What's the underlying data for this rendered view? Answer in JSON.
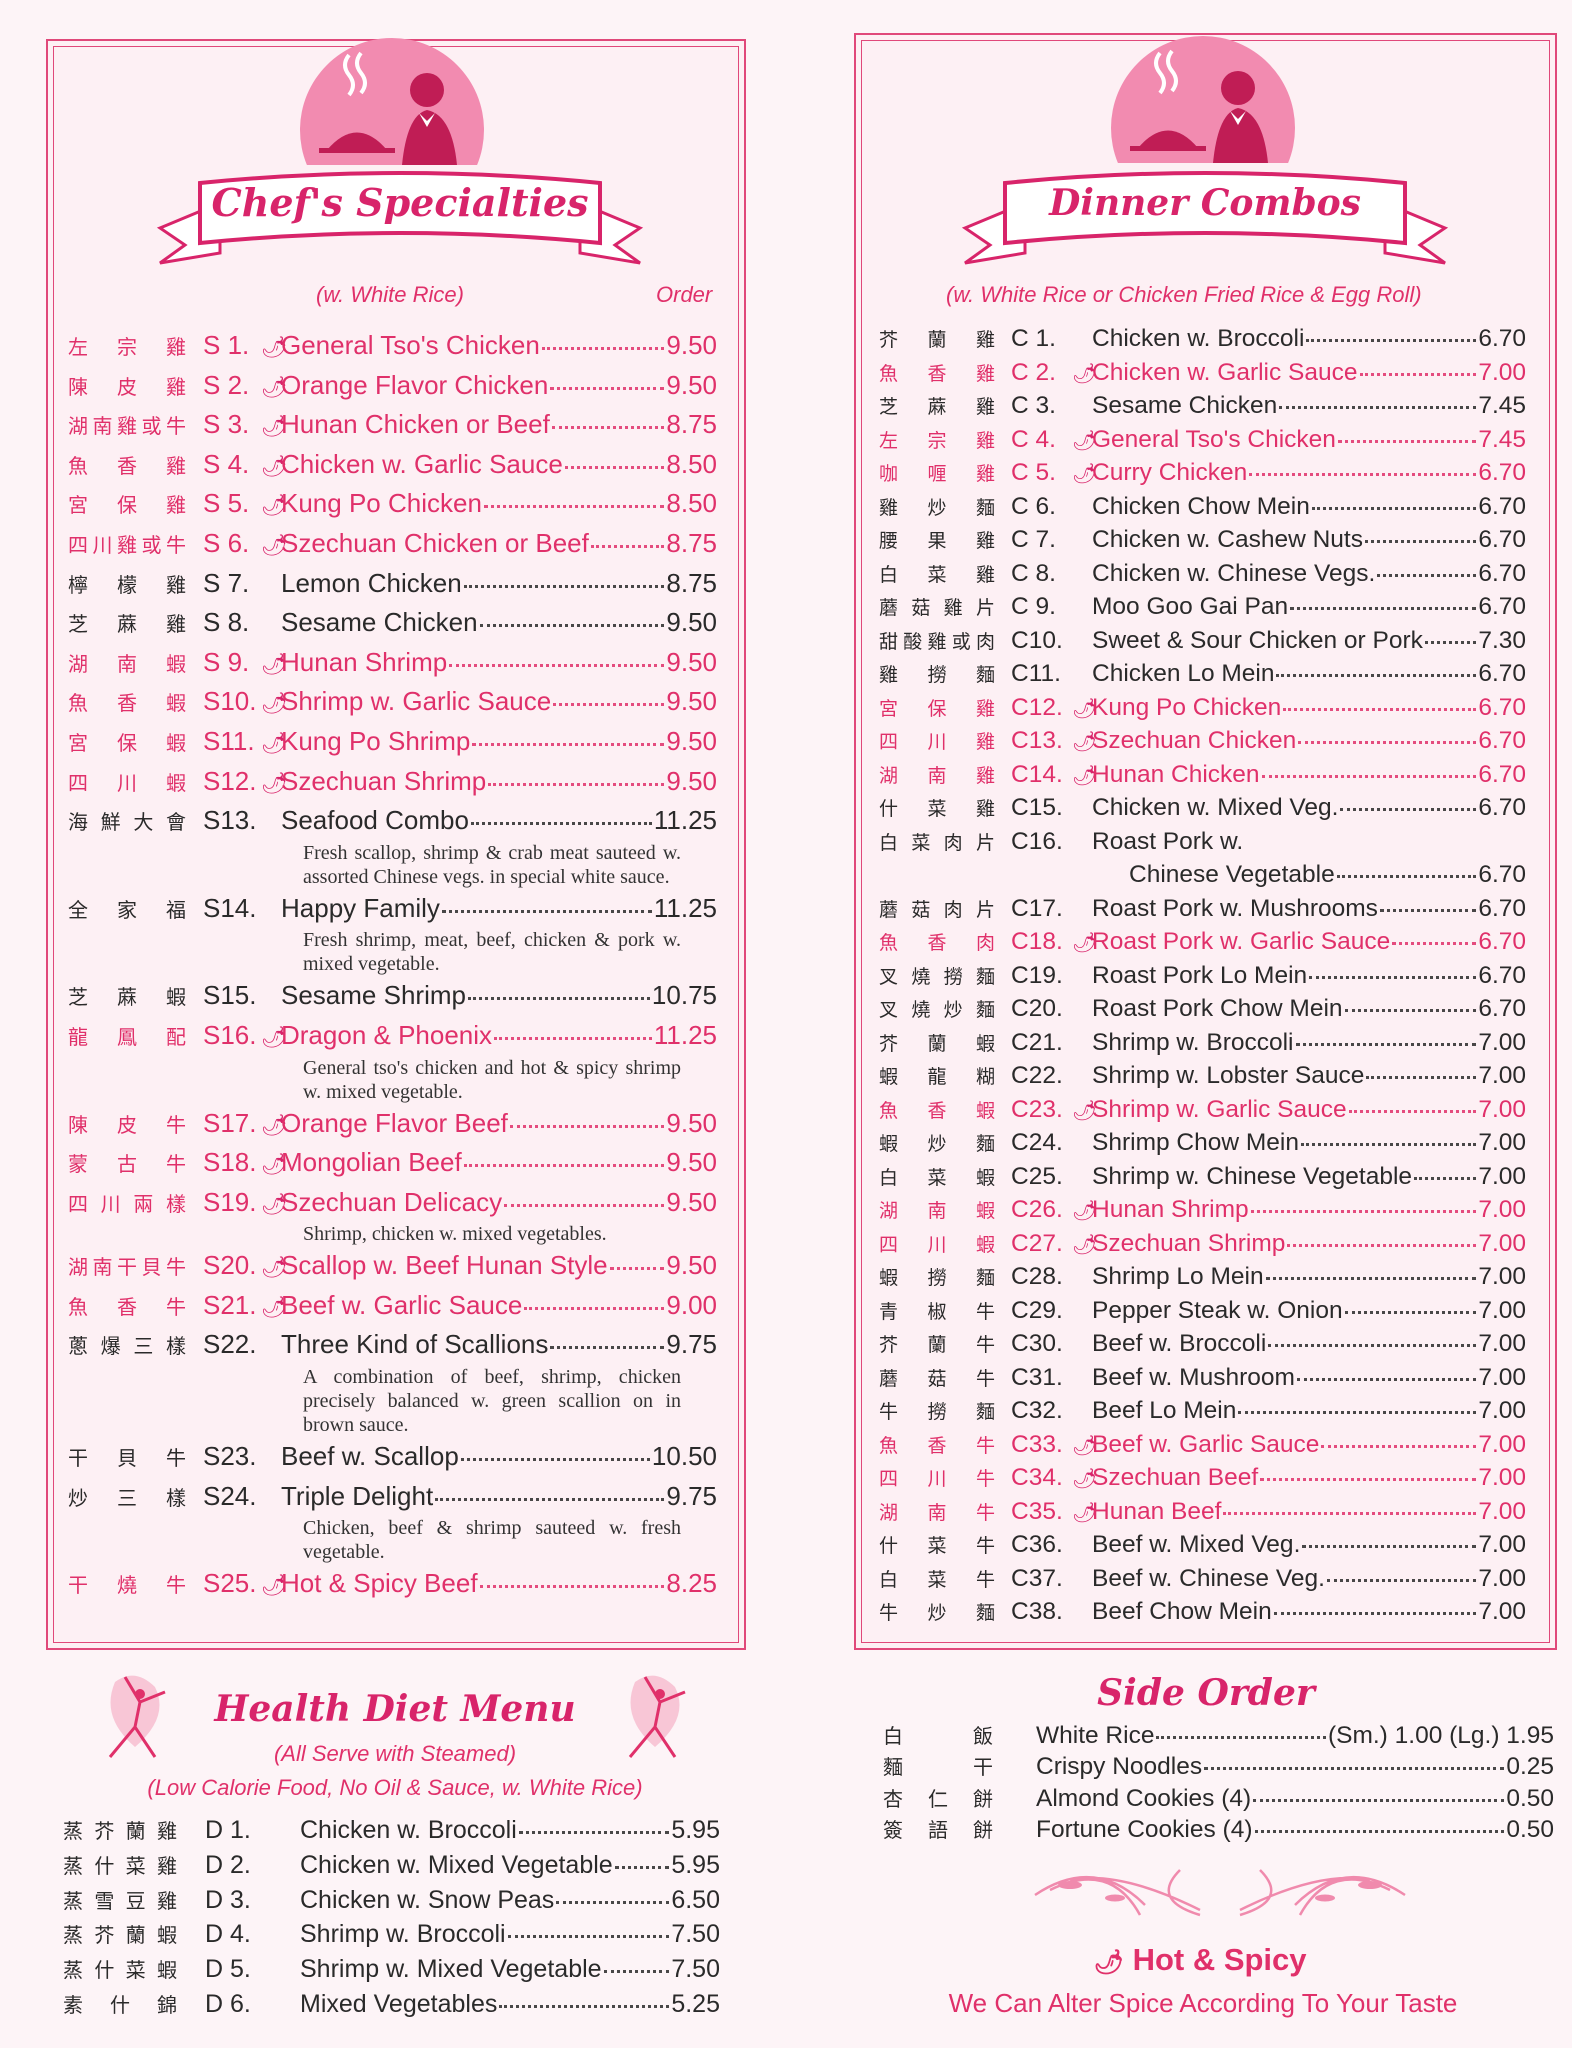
{
  "colors": {
    "accent": "#e0306a",
    "background": "#fdf4f7",
    "text": "#2a2a2a"
  },
  "icons": {
    "spicy": "chili-pepper-icon"
  },
  "specialties": {
    "title": "Chef's Specialties",
    "subtitle": "(w. White Rice)",
    "order_label": "Order",
    "items": [
      {
        "zh": "左宗雞",
        "code": "S 1.",
        "name": "General Tso's Chicken",
        "price": "9.50",
        "spicy": true
      },
      {
        "zh": "陳皮雞",
        "code": "S 2.",
        "name": "Orange Flavor Chicken",
        "price": "9.50",
        "spicy": true
      },
      {
        "zh": "湖南雞或牛",
        "code": "S 3.",
        "name": "Hunan Chicken or Beef",
        "price": "8.75",
        "spicy": true
      },
      {
        "zh": "魚香雞",
        "code": "S 4.",
        "name": "Chicken w. Garlic Sauce",
        "price": "8.50",
        "spicy": true
      },
      {
        "zh": "宮保雞",
        "code": "S 5.",
        "name": "Kung Po Chicken",
        "price": "8.50",
        "spicy": true
      },
      {
        "zh": "四川雞或牛",
        "code": "S 6.",
        "name": "Szechuan Chicken or Beef",
        "price": "8.75",
        "spicy": true
      },
      {
        "zh": "檸檬雞",
        "code": "S 7.",
        "name": "Lemon Chicken",
        "price": "8.75",
        "spicy": false
      },
      {
        "zh": "芝蔴雞",
        "code": "S 8.",
        "name": "Sesame Chicken",
        "price": "9.50",
        "spicy": false
      },
      {
        "zh": "湖南蝦",
        "code": "S 9.",
        "name": "Hunan Shrimp",
        "price": "9.50",
        "spicy": true
      },
      {
        "zh": "魚香蝦",
        "code": "S10.",
        "name": "Shrimp w. Garlic Sauce",
        "price": "9.50",
        "spicy": true
      },
      {
        "zh": "宮保蝦",
        "code": "S11.",
        "name": "Kung Po Shrimp",
        "price": "9.50",
        "spicy": true
      },
      {
        "zh": "四川蝦",
        "code": "S12.",
        "name": "Szechuan Shrimp",
        "price": "9.50",
        "spicy": true
      },
      {
        "zh": "海鮮大會",
        "code": "S13.",
        "name": "Seafood Combo",
        "price": "11.25",
        "spicy": false,
        "desc": "Fresh scallop, shrimp & crab meat sauteed w. assorted Chinese vegs. in special white sauce."
      },
      {
        "zh": "全家福",
        "code": "S14.",
        "name": "Happy Family",
        "price": "11.25",
        "spicy": false,
        "desc": "Fresh shrimp, meat, beef, chicken & pork w. mixed vegetable."
      },
      {
        "zh": "芝蔴蝦",
        "code": "S15.",
        "name": "Sesame Shrimp",
        "price": "10.75",
        "spicy": false
      },
      {
        "zh": "龍鳳配",
        "code": "S16.",
        "name": "Dragon & Phoenix",
        "price": "11.25",
        "spicy": true,
        "desc": "General tso's chicken and hot & spicy shrimp w. mixed vegetable."
      },
      {
        "zh": "陳皮牛",
        "code": "S17.",
        "name": "Orange Flavor Beef",
        "price": "9.50",
        "spicy": true
      },
      {
        "zh": "蒙古牛",
        "code": "S18.",
        "name": "Mongolian Beef",
        "price": "9.50",
        "spicy": true
      },
      {
        "zh": "四川兩樣",
        "code": "S19.",
        "name": "Szechuan Delicacy",
        "price": "9.50",
        "spicy": true,
        "desc": "Shrimp, chicken w. mixed vegetables."
      },
      {
        "zh": "湖南干貝牛",
        "code": "S20.",
        "name": "Scallop w. Beef Hunan Style",
        "price": "9.50",
        "spicy": true
      },
      {
        "zh": "魚香牛",
        "code": "S21.",
        "name": "Beef w. Garlic Sauce",
        "price": "9.00",
        "spicy": true
      },
      {
        "zh": "蔥爆三樣",
        "code": "S22.",
        "name": "Three Kind of Scallions",
        "price": "9.75",
        "spicy": false,
        "desc": "A combination of beef, shrimp, chicken precisely balanced w. green scallion on in brown sauce."
      },
      {
        "zh": "干貝牛",
        "code": "S23.",
        "name": "Beef w. Scallop",
        "price": "10.50",
        "spicy": false
      },
      {
        "zh": "炒三樣",
        "code": "S24.",
        "name": "Triple Delight",
        "price": "9.75",
        "spicy": false,
        "desc": "Chicken, beef & shrimp sauteed w. fresh vegetable."
      },
      {
        "zh": "干燒牛",
        "code": "S25.",
        "name": "Hot & Spicy Beef",
        "price": "8.25",
        "spicy": true
      }
    ]
  },
  "combos": {
    "title": "Dinner Combos",
    "subtitle": "(w. White Rice or Chicken Fried Rice & Egg Roll)",
    "items": [
      {
        "zh": "芥蘭雞",
        "code": "C 1.",
        "name": "Chicken w. Broccoli",
        "price": "6.70",
        "spicy": false
      },
      {
        "zh": "魚香雞",
        "code": "C 2.",
        "name": "Chicken w. Garlic Sauce",
        "price": "7.00",
        "spicy": true
      },
      {
        "zh": "芝蔴雞",
        "code": "C 3.",
        "name": "Sesame Chicken",
        "price": "7.45",
        "spicy": false
      },
      {
        "zh": "左宗雞",
        "code": "C 4.",
        "name": "General Tso's Chicken",
        "price": "7.45",
        "spicy": true
      },
      {
        "zh": "咖喱雞",
        "code": "C 5.",
        "name": "Curry Chicken",
        "price": "6.70",
        "spicy": true
      },
      {
        "zh": "雞炒麵",
        "code": "C 6.",
        "name": "Chicken Chow Mein",
        "price": "6.70",
        "spicy": false
      },
      {
        "zh": "腰果雞",
        "code": "C 7.",
        "name": "Chicken w. Cashew Nuts",
        "price": "6.70",
        "spicy": false
      },
      {
        "zh": "白菜雞",
        "code": "C 8.",
        "name": "Chicken w. Chinese Vegs.",
        "price": "6.70",
        "spicy": false
      },
      {
        "zh": "蘑菇雞片",
        "code": "C 9.",
        "name": "Moo Goo Gai Pan",
        "price": "6.70",
        "spicy": false
      },
      {
        "zh": "甜酸雞或肉",
        "code": "C10.",
        "name": "Sweet & Sour Chicken or Pork",
        "price": "7.30",
        "spicy": false
      },
      {
        "zh": "雞撈麵",
        "code": "C11.",
        "name": "Chicken Lo Mein",
        "price": "6.70",
        "spicy": false
      },
      {
        "zh": "宮保雞",
        "code": "C12.",
        "name": "Kung Po Chicken",
        "price": "6.70",
        "spicy": true
      },
      {
        "zh": "四川雞",
        "code": "C13.",
        "name": "Szechuan Chicken",
        "price": "6.70",
        "spicy": true
      },
      {
        "zh": "湖南雞",
        "code": "C14.",
        "name": "Hunan Chicken",
        "price": "6.70",
        "spicy": true
      },
      {
        "zh": "什菜雞",
        "code": "C15.",
        "name": "Chicken w. Mixed Veg.",
        "price": "6.70",
        "spicy": false
      },
      {
        "zh": "白菜肉片",
        "code": "C16.",
        "name": "Roast Pork w.",
        "name2": "Chinese Vegetable",
        "price": "6.70",
        "spicy": false
      },
      {
        "zh": "蘑菇肉片",
        "code": "C17.",
        "name": "Roast Pork w. Mushrooms",
        "price": "6.70",
        "spicy": false
      },
      {
        "zh": "魚香肉",
        "code": "C18.",
        "name": "Roast Pork w. Garlic Sauce",
        "price": "6.70",
        "spicy": true
      },
      {
        "zh": "叉燒撈麵",
        "code": "C19.",
        "name": "Roast Pork Lo Mein",
        "price": "6.70",
        "spicy": false
      },
      {
        "zh": "叉燒炒麵",
        "code": "C20.",
        "name": "Roast Pork Chow Mein",
        "price": "6.70",
        "spicy": false
      },
      {
        "zh": "芥蘭蝦",
        "code": "C21.",
        "name": "Shrimp w. Broccoli",
        "price": "7.00",
        "spicy": false
      },
      {
        "zh": "蝦龍糊",
        "code": "C22.",
        "name": "Shrimp w. Lobster Sauce",
        "price": "7.00",
        "spicy": false
      },
      {
        "zh": "魚香蝦",
        "code": "C23.",
        "name": "Shrimp w. Garlic Sauce",
        "price": "7.00",
        "spicy": true
      },
      {
        "zh": "蝦炒麵",
        "code": "C24.",
        "name": "Shrimp Chow Mein",
        "price": "7.00",
        "spicy": false
      },
      {
        "zh": "白菜蝦",
        "code": "C25.",
        "name": "Shrimp w. Chinese Vegetable",
        "price": "7.00",
        "spicy": false
      },
      {
        "zh": "湖南蝦",
        "code": "C26.",
        "name": "Hunan Shrimp",
        "price": "7.00",
        "spicy": true
      },
      {
        "zh": "四川蝦",
        "code": "C27.",
        "name": "Szechuan Shrimp",
        "price": "7.00",
        "spicy": true
      },
      {
        "zh": "蝦撈麵",
        "code": "C28.",
        "name": "Shrimp Lo Mein",
        "price": "7.00",
        "spicy": false
      },
      {
        "zh": "青椒牛",
        "code": "C29.",
        "name": "Pepper Steak w. Onion",
        "price": "7.00",
        "spicy": false
      },
      {
        "zh": "芥蘭牛",
        "code": "C30.",
        "name": "Beef w. Broccoli",
        "price": "7.00",
        "spicy": false
      },
      {
        "zh": "蘑菇牛",
        "code": "C31.",
        "name": "Beef w. Mushroom",
        "price": "7.00",
        "spicy": false
      },
      {
        "zh": "牛撈麵",
        "code": "C32.",
        "name": "Beef Lo Mein",
        "price": "7.00",
        "spicy": false
      },
      {
        "zh": "魚香牛",
        "code": "C33.",
        "name": "Beef w. Garlic Sauce",
        "price": "7.00",
        "spicy": true
      },
      {
        "zh": "四川牛",
        "code": "C34.",
        "name": "Szechuan Beef",
        "price": "7.00",
        "spicy": true
      },
      {
        "zh": "湖南牛",
        "code": "C35.",
        "name": "Hunan Beef",
        "price": "7.00",
        "spicy": true
      },
      {
        "zh": "什菜牛",
        "code": "C36.",
        "name": "Beef w. Mixed Veg.",
        "price": "7.00",
        "spicy": false
      },
      {
        "zh": "白菜牛",
        "code": "C37.",
        "name": "Beef w. Chinese Veg.",
        "price": "7.00",
        "spicy": false
      },
      {
        "zh": "牛炒麵",
        "code": "C38.",
        "name": "Beef Chow Mein",
        "price": "7.00",
        "spicy": false
      }
    ]
  },
  "diet": {
    "title": "Health Diet Menu",
    "subtitle1": "(All Serve with Steamed)",
    "subtitle2": "(Low Calorie Food, No Oil & Sauce, w. White Rice)",
    "items": [
      {
        "zh": "蒸芥蘭雞",
        "code": "D 1.",
        "name": "Chicken w. Broccoli",
        "price": "5.95"
      },
      {
        "zh": "蒸什菜雞",
        "code": "D 2.",
        "name": "Chicken w. Mixed Vegetable",
        "price": "5.95"
      },
      {
        "zh": "蒸雪豆雞",
        "code": "D 3.",
        "name": "Chicken w. Snow Peas",
        "price": "6.50"
      },
      {
        "zh": "蒸芥蘭蝦",
        "code": "D 4.",
        "name": "Shrimp w. Broccoli",
        "price": "7.50"
      },
      {
        "zh": "蒸什菜蝦",
        "code": "D 5.",
        "name": "Shrimp w. Mixed Vegetable",
        "price": "7.50"
      },
      {
        "zh": "素什錦",
        "code": "D 6.",
        "name": "Mixed Vegetables",
        "price": "5.25"
      }
    ]
  },
  "side": {
    "title": "Side Order",
    "items": [
      {
        "zh": "白飯",
        "name": "White Rice",
        "price": "(Sm.) 1.00 (Lg.) 1.95"
      },
      {
        "zh": "麵干",
        "name": "Crispy Noodles",
        "price": "0.25"
      },
      {
        "zh": "杏仁餅",
        "name": "Almond Cookies (4)",
        "price": "0.50"
      },
      {
        "zh": "簽語餅",
        "name": "Fortune Cookies (4)",
        "price": "0.50"
      }
    ]
  },
  "footer": {
    "legend": "Hot & Spicy",
    "note": "We Can Alter Spice According To Your Taste"
  }
}
